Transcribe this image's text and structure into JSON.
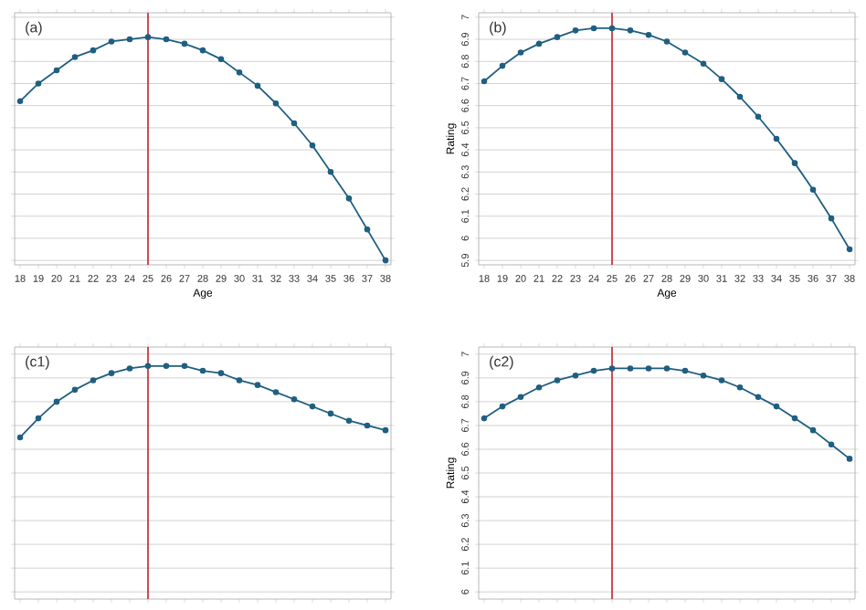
{
  "chart_data": [
    {
      "type": "line",
      "annotations": [
        "(a)"
      ],
      "xlabel": "Age",
      "x": [
        18,
        19,
        20,
        21,
        22,
        23,
        24,
        25,
        26,
        27,
        28,
        29,
        30,
        31,
        32,
        33,
        34,
        35,
        36,
        37,
        38
      ],
      "series": [
        {
          "color": "#1f5f80",
          "values": [
            6.62,
            6.7,
            6.76,
            6.82,
            6.85,
            6.89,
            6.9,
            6.91,
            6.9,
            6.88,
            6.85,
            6.81,
            6.75,
            6.69,
            6.61,
            6.52,
            6.42,
            6.3,
            6.18,
            6.04,
            5.9
          ]
        }
      ],
      "xlim": [
        17.7,
        38.3
      ],
      "xticks": [
        18,
        19,
        20,
        21,
        22,
        23,
        24,
        25,
        26,
        27,
        28,
        29,
        30,
        31,
        32,
        33,
        34,
        35,
        36,
        37,
        38
      ],
      "ylim": [
        5.88,
        7.02
      ],
      "yticks": [
        5.9,
        6,
        6.1,
        6.2,
        6.3,
        6.4,
        6.5,
        6.6,
        6.7,
        6.8,
        6.9,
        7
      ],
      "ref_lines": [
        {
          "axis": "x",
          "value": 25,
          "color": "#c0202a"
        }
      ],
      "grid": "y",
      "marker": "circle",
      "line_style": "solid",
      "tick_labels": "x"
    },
    {
      "type": "line",
      "annotations": [
        "(b)"
      ],
      "xlabel": "Age",
      "ylabel": "Rating",
      "x": [
        18,
        19,
        20,
        21,
        22,
        23,
        24,
        25,
        26,
        27,
        28,
        29,
        30,
        31,
        32,
        33,
        34,
        35,
        36,
        37,
        38
      ],
      "series": [
        {
          "color": "#1f5f80",
          "values": [
            6.71,
            6.78,
            6.84,
            6.88,
            6.91,
            6.94,
            6.95,
            6.95,
            6.94,
            6.92,
            6.89,
            6.84,
            6.79,
            6.72,
            6.64,
            6.55,
            6.45,
            6.34,
            6.22,
            6.09,
            5.95
          ]
        }
      ],
      "xlim": [
        17.7,
        38.3
      ],
      "xticks": [
        18,
        19,
        20,
        21,
        22,
        23,
        24,
        25,
        26,
        27,
        28,
        29,
        30,
        31,
        32,
        33,
        34,
        35,
        36,
        37,
        38
      ],
      "ylim": [
        5.88,
        7.02
      ],
      "yticks": [
        5.9,
        6,
        6.1,
        6.2,
        6.3,
        6.4,
        6.5,
        6.6,
        6.7,
        6.8,
        6.9,
        7
      ],
      "ref_lines": [
        {
          "axis": "x",
          "value": 25,
          "color": "#c0202a"
        }
      ],
      "grid": "y",
      "marker": "circle",
      "line_style": "solid"
    },
    {
      "type": "line",
      "annotations": [
        "(c1)"
      ],
      "x": [
        18,
        19,
        20,
        21,
        22,
        23,
        24,
        25,
        26,
        27,
        28,
        29,
        30,
        31,
        32,
        33,
        34,
        35,
        36,
        37,
        38
      ],
      "series": [
        {
          "color": "#1f5f80",
          "values": [
            6.65,
            6.73,
            6.8,
            6.85,
            6.89,
            6.92,
            6.94,
            6.95,
            6.95,
            6.95,
            6.93,
            6.92,
            6.89,
            6.87,
            6.84,
            6.81,
            6.78,
            6.75,
            6.72,
            6.7,
            6.68
          ]
        }
      ],
      "xlim": [
        17.7,
        38.3
      ],
      "xticks": [
        18,
        19,
        20,
        21,
        22,
        23,
        24,
        25,
        26,
        27,
        28,
        29,
        30,
        31,
        32,
        33,
        34,
        35,
        36,
        37,
        38
      ],
      "ylim": [
        5.97,
        7.03
      ],
      "yticks": [
        6,
        6.1,
        6.2,
        6.3,
        6.4,
        6.5,
        6.6,
        6.7,
        6.8,
        6.9,
        7
      ],
      "ref_lines": [
        {
          "axis": "x",
          "value": 25,
          "color": "#c0202a"
        }
      ],
      "grid": "y",
      "marker": "circle",
      "line_style": "solid",
      "tick_labels": false
    },
    {
      "type": "line",
      "annotations": [
        "(c2)"
      ],
      "ylabel": "Rating",
      "x": [
        18,
        19,
        20,
        21,
        22,
        23,
        24,
        25,
        26,
        27,
        28,
        29,
        30,
        31,
        32,
        33,
        34,
        35,
        36,
        37,
        38
      ],
      "series": [
        {
          "color": "#1f5f80",
          "values": [
            6.73,
            6.78,
            6.82,
            6.86,
            6.89,
            6.91,
            6.93,
            6.94,
            6.94,
            6.94,
            6.94,
            6.93,
            6.91,
            6.89,
            6.86,
            6.82,
            6.78,
            6.73,
            6.68,
            6.62,
            6.56
          ]
        }
      ],
      "xlim": [
        17.7,
        38.3
      ],
      "xticks": [
        18,
        19,
        20,
        21,
        22,
        23,
        24,
        25,
        26,
        27,
        28,
        29,
        30,
        31,
        32,
        33,
        34,
        35,
        36,
        37,
        38
      ],
      "ylim": [
        5.97,
        7.03
      ],
      "yticks": [
        6,
        6.1,
        6.2,
        6.3,
        6.4,
        6.5,
        6.6,
        6.7,
        6.8,
        6.9,
        7
      ],
      "ref_lines": [
        {
          "axis": "x",
          "value": 25,
          "color": "#c0202a"
        }
      ],
      "grid": "y",
      "marker": "circle",
      "line_style": "solid",
      "tick_labels": "y"
    }
  ]
}
